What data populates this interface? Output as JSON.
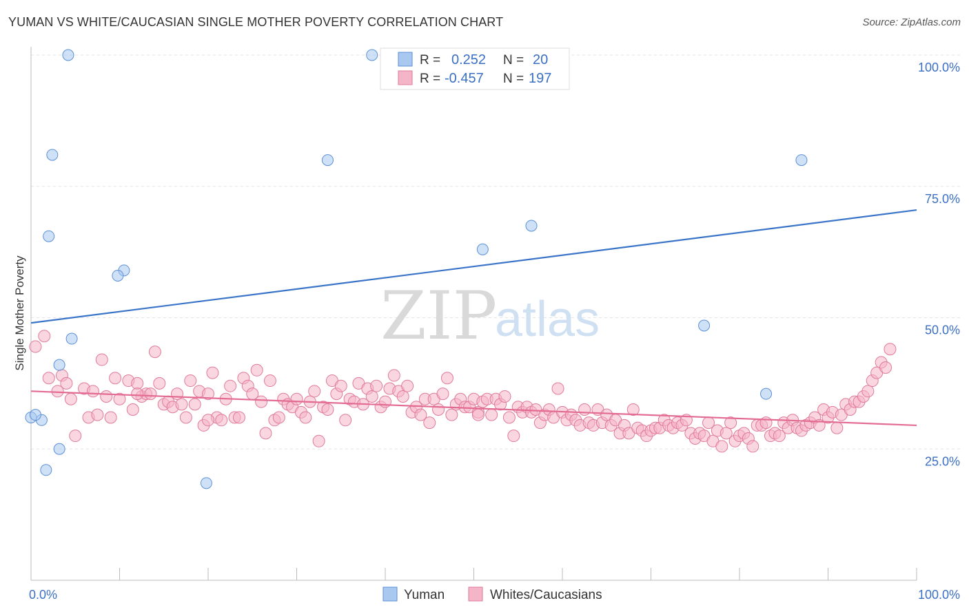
{
  "header": {
    "title": "YUMAN VS WHITE/CAUCASIAN SINGLE MOTHER POVERTY CORRELATION CHART",
    "source": "Source: ZipAtlas.com"
  },
  "watermark": {
    "zip": "ZIP",
    "atlas": "atlas"
  },
  "legend": {
    "r_label": "R =",
    "n_label": "N =",
    "rows": [
      {
        "r": "0.252",
        "n": "20",
        "color": "#a8c8f0",
        "stroke": "#5b8fd6"
      },
      {
        "r": "-0.457",
        "n": "197",
        "color": "#f5b5c8",
        "stroke": "#e07a9a"
      }
    ]
  },
  "chart_data": {
    "type": "scatter",
    "title": "YUMAN VS WHITE/CAUCASIAN SINGLE MOTHER POVERTY CORRELATION CHART",
    "xlabel": "",
    "ylabel": "Single Mother Poverty",
    "xlim": [
      0,
      100
    ],
    "ylim": [
      0,
      100
    ],
    "x_tick_labels": [
      "0.0%",
      "100.0%"
    ],
    "y_tick_labels": [
      "25.0%",
      "50.0%",
      "75.0%",
      "100.0%"
    ],
    "y_ticks": [
      25,
      50,
      75,
      100
    ],
    "grid": "horizontal dashed",
    "legend_position": "bottom",
    "series": [
      {
        "name": "Yuman",
        "color": "#a8c8f0",
        "stroke": "#5b8fd6",
        "line_color": "#3a74c9",
        "trend": {
          "x": [
            0,
            100
          ],
          "y": [
            49,
            70.5
          ]
        },
        "points": [
          [
            4.2,
            100
          ],
          [
            38.5,
            100
          ],
          [
            2.4,
            81
          ],
          [
            33.5,
            80
          ],
          [
            87,
            80
          ],
          [
            56.5,
            67.5
          ],
          [
            2,
            65.5
          ],
          [
            51,
            63
          ],
          [
            10.5,
            59
          ],
          [
            9.8,
            58
          ],
          [
            76,
            48.5
          ],
          [
            4.6,
            46
          ],
          [
            3.2,
            41
          ],
          [
            0,
            31
          ],
          [
            1.2,
            30.5
          ],
          [
            83,
            35.5
          ],
          [
            3.2,
            25
          ],
          [
            1.7,
            21
          ],
          [
            19.8,
            18.5
          ],
          [
            0.5,
            31.5
          ]
        ]
      },
      {
        "name": "Whites/Caucasians",
        "color": "#f5b5c8",
        "stroke": "#e07a9a",
        "line_color": "#e36b93",
        "trend": {
          "x": [
            0,
            100
          ],
          "y": [
            36,
            29.5
          ]
        },
        "points": [
          [
            0.5,
            44.5
          ],
          [
            1.5,
            46.5
          ],
          [
            2,
            38.5
          ],
          [
            3,
            36
          ],
          [
            3.5,
            39
          ],
          [
            4,
            37.5
          ],
          [
            4.5,
            34.5
          ],
          [
            5,
            27.5
          ],
          [
            6,
            36.5
          ],
          [
            6.5,
            31
          ],
          [
            7,
            36
          ],
          [
            7.5,
            31.5
          ],
          [
            8,
            42
          ],
          [
            8.5,
            35
          ],
          [
            9,
            31
          ],
          [
            9.5,
            38.5
          ],
          [
            10,
            34.5
          ],
          [
            11,
            38
          ],
          [
            11.5,
            32.5
          ],
          [
            12,
            37.5
          ],
          [
            12.5,
            35
          ],
          [
            13,
            35.5
          ],
          [
            13.5,
            35.5
          ],
          [
            14,
            43.5
          ],
          [
            14.5,
            37.5
          ],
          [
            15,
            33.5
          ],
          [
            15.5,
            34
          ],
          [
            16,
            33
          ],
          [
            16.5,
            35.5
          ],
          [
            17,
            33.5
          ],
          [
            17.5,
            31
          ],
          [
            18,
            38
          ],
          [
            18.5,
            33.5
          ],
          [
            19,
            36
          ],
          [
            19.5,
            29.5
          ],
          [
            20,
            35.5
          ],
          [
            20.5,
            39.5
          ],
          [
            21,
            31
          ],
          [
            21.5,
            30.5
          ],
          [
            22,
            34.5
          ],
          [
            22.5,
            37
          ],
          [
            23,
            31
          ],
          [
            23.5,
            31
          ],
          [
            24,
            38.5
          ],
          [
            24.5,
            37
          ],
          [
            25,
            35.5
          ],
          [
            25.5,
            40
          ],
          [
            26,
            34
          ],
          [
            26.5,
            28
          ],
          [
            27,
            38
          ],
          [
            27.5,
            30.5
          ],
          [
            28,
            31
          ],
          [
            28.5,
            34.5
          ],
          [
            29,
            33.5
          ],
          [
            29.5,
            33
          ],
          [
            30,
            34.5
          ],
          [
            30.5,
            32
          ],
          [
            31,
            31
          ],
          [
            31.5,
            34
          ],
          [
            32,
            36
          ],
          [
            32.5,
            26.5
          ],
          [
            33,
            33
          ],
          [
            33.5,
            32.5
          ],
          [
            34,
            38
          ],
          [
            34.5,
            35.5
          ],
          [
            35,
            37
          ],
          [
            35.5,
            30.5
          ],
          [
            36,
            34.5
          ],
          [
            36.5,
            34
          ],
          [
            37,
            37.5
          ],
          [
            37.5,
            33.5
          ],
          [
            38,
            36.5
          ],
          [
            38.5,
            35
          ],
          [
            39,
            37
          ],
          [
            39.5,
            33
          ],
          [
            40,
            34
          ],
          [
            40.5,
            36.5
          ],
          [
            41,
            39
          ],
          [
            41.5,
            36
          ],
          [
            42,
            35
          ],
          [
            42.5,
            37
          ],
          [
            43,
            32
          ],
          [
            43.5,
            33
          ],
          [
            44,
            31.5
          ],
          [
            44.5,
            34.5
          ],
          [
            45,
            30
          ],
          [
            45.5,
            34.5
          ],
          [
            46,
            32.5
          ],
          [
            46.5,
            35.5
          ],
          [
            47,
            38.5
          ],
          [
            47.5,
            31.5
          ],
          [
            48,
            33.5
          ],
          [
            48.5,
            34.5
          ],
          [
            49,
            33
          ],
          [
            49.5,
            33
          ],
          [
            50,
            34.5
          ],
          [
            50.5,
            32
          ],
          [
            51,
            34
          ],
          [
            51.5,
            34.5
          ],
          [
            52,
            31.5
          ],
          [
            52.5,
            34.5
          ],
          [
            53,
            33.5
          ],
          [
            53.5,
            35
          ],
          [
            54,
            31
          ],
          [
            54.5,
            27.5
          ],
          [
            55,
            33
          ],
          [
            55.5,
            32
          ],
          [
            56,
            33
          ],
          [
            56.5,
            32
          ],
          [
            57,
            32.5
          ],
          [
            57.5,
            30
          ],
          [
            58,
            31.5
          ],
          [
            58.5,
            32.5
          ],
          [
            59,
            31
          ],
          [
            59.5,
            36.5
          ],
          [
            60,
            32
          ],
          [
            60.5,
            30.5
          ],
          [
            61,
            31.5
          ],
          [
            61.5,
            30.5
          ],
          [
            62,
            29.5
          ],
          [
            62.5,
            32.5
          ],
          [
            63,
            30
          ],
          [
            63.5,
            29.5
          ],
          [
            64,
            32.5
          ],
          [
            64.5,
            30
          ],
          [
            65,
            31.5
          ],
          [
            65.5,
            29.5
          ],
          [
            66,
            30.5
          ],
          [
            66.5,
            28
          ],
          [
            67,
            29.5
          ],
          [
            67.5,
            28
          ],
          [
            68,
            32.5
          ],
          [
            68.5,
            29
          ],
          [
            69,
            28.5
          ],
          [
            69.5,
            27.5
          ],
          [
            70,
            28.5
          ],
          [
            70.5,
            29
          ],
          [
            71,
            29
          ],
          [
            71.5,
            30.5
          ],
          [
            72,
            29.5
          ],
          [
            72.5,
            29
          ],
          [
            73,
            30
          ],
          [
            73.5,
            29.5
          ],
          [
            74,
            30.5
          ],
          [
            74.5,
            28
          ],
          [
            75,
            27
          ],
          [
            75.5,
            28
          ],
          [
            76,
            27.5
          ],
          [
            76.5,
            30
          ],
          [
            77,
            26.5
          ],
          [
            77.5,
            28.5
          ],
          [
            78,
            25.5
          ],
          [
            78.5,
            28
          ],
          [
            79,
            30
          ],
          [
            79.5,
            26.5
          ],
          [
            80,
            27.5
          ],
          [
            80.5,
            28
          ],
          [
            81,
            27
          ],
          [
            81.5,
            25.5
          ],
          [
            82,
            29.5
          ],
          [
            82.5,
            29.5
          ],
          [
            83,
            30
          ],
          [
            83.5,
            27.5
          ],
          [
            84,
            28
          ],
          [
            84.5,
            27.5
          ],
          [
            85,
            30
          ],
          [
            85.5,
            29
          ],
          [
            86,
            30.5
          ],
          [
            86.5,
            29
          ],
          [
            87,
            28.5
          ],
          [
            87.5,
            29.5
          ],
          [
            88,
            30
          ],
          [
            88.5,
            31
          ],
          [
            89,
            29.5
          ],
          [
            89.5,
            32.5
          ],
          [
            90,
            31
          ],
          [
            90.5,
            32
          ],
          [
            91,
            29
          ],
          [
            91.5,
            31.5
          ],
          [
            92,
            33.5
          ],
          [
            92.5,
            32.5
          ],
          [
            93,
            34
          ],
          [
            93.5,
            34
          ],
          [
            94,
            35
          ],
          [
            94.5,
            36
          ],
          [
            95,
            38
          ],
          [
            95.5,
            39.5
          ],
          [
            96,
            41.5
          ],
          [
            96.5,
            40.5
          ],
          [
            97,
            44
          ],
          [
            50.5,
            31.5
          ],
          [
            20,
            30.5
          ],
          [
            12,
            35.5
          ]
        ]
      }
    ]
  },
  "bottom_legend": [
    {
      "label": "Yuman",
      "color": "#a8c8f0",
      "stroke": "#5b8fd6"
    },
    {
      "label": "Whites/Caucasians",
      "color": "#f5b5c8",
      "stroke": "#e07a9a"
    }
  ]
}
